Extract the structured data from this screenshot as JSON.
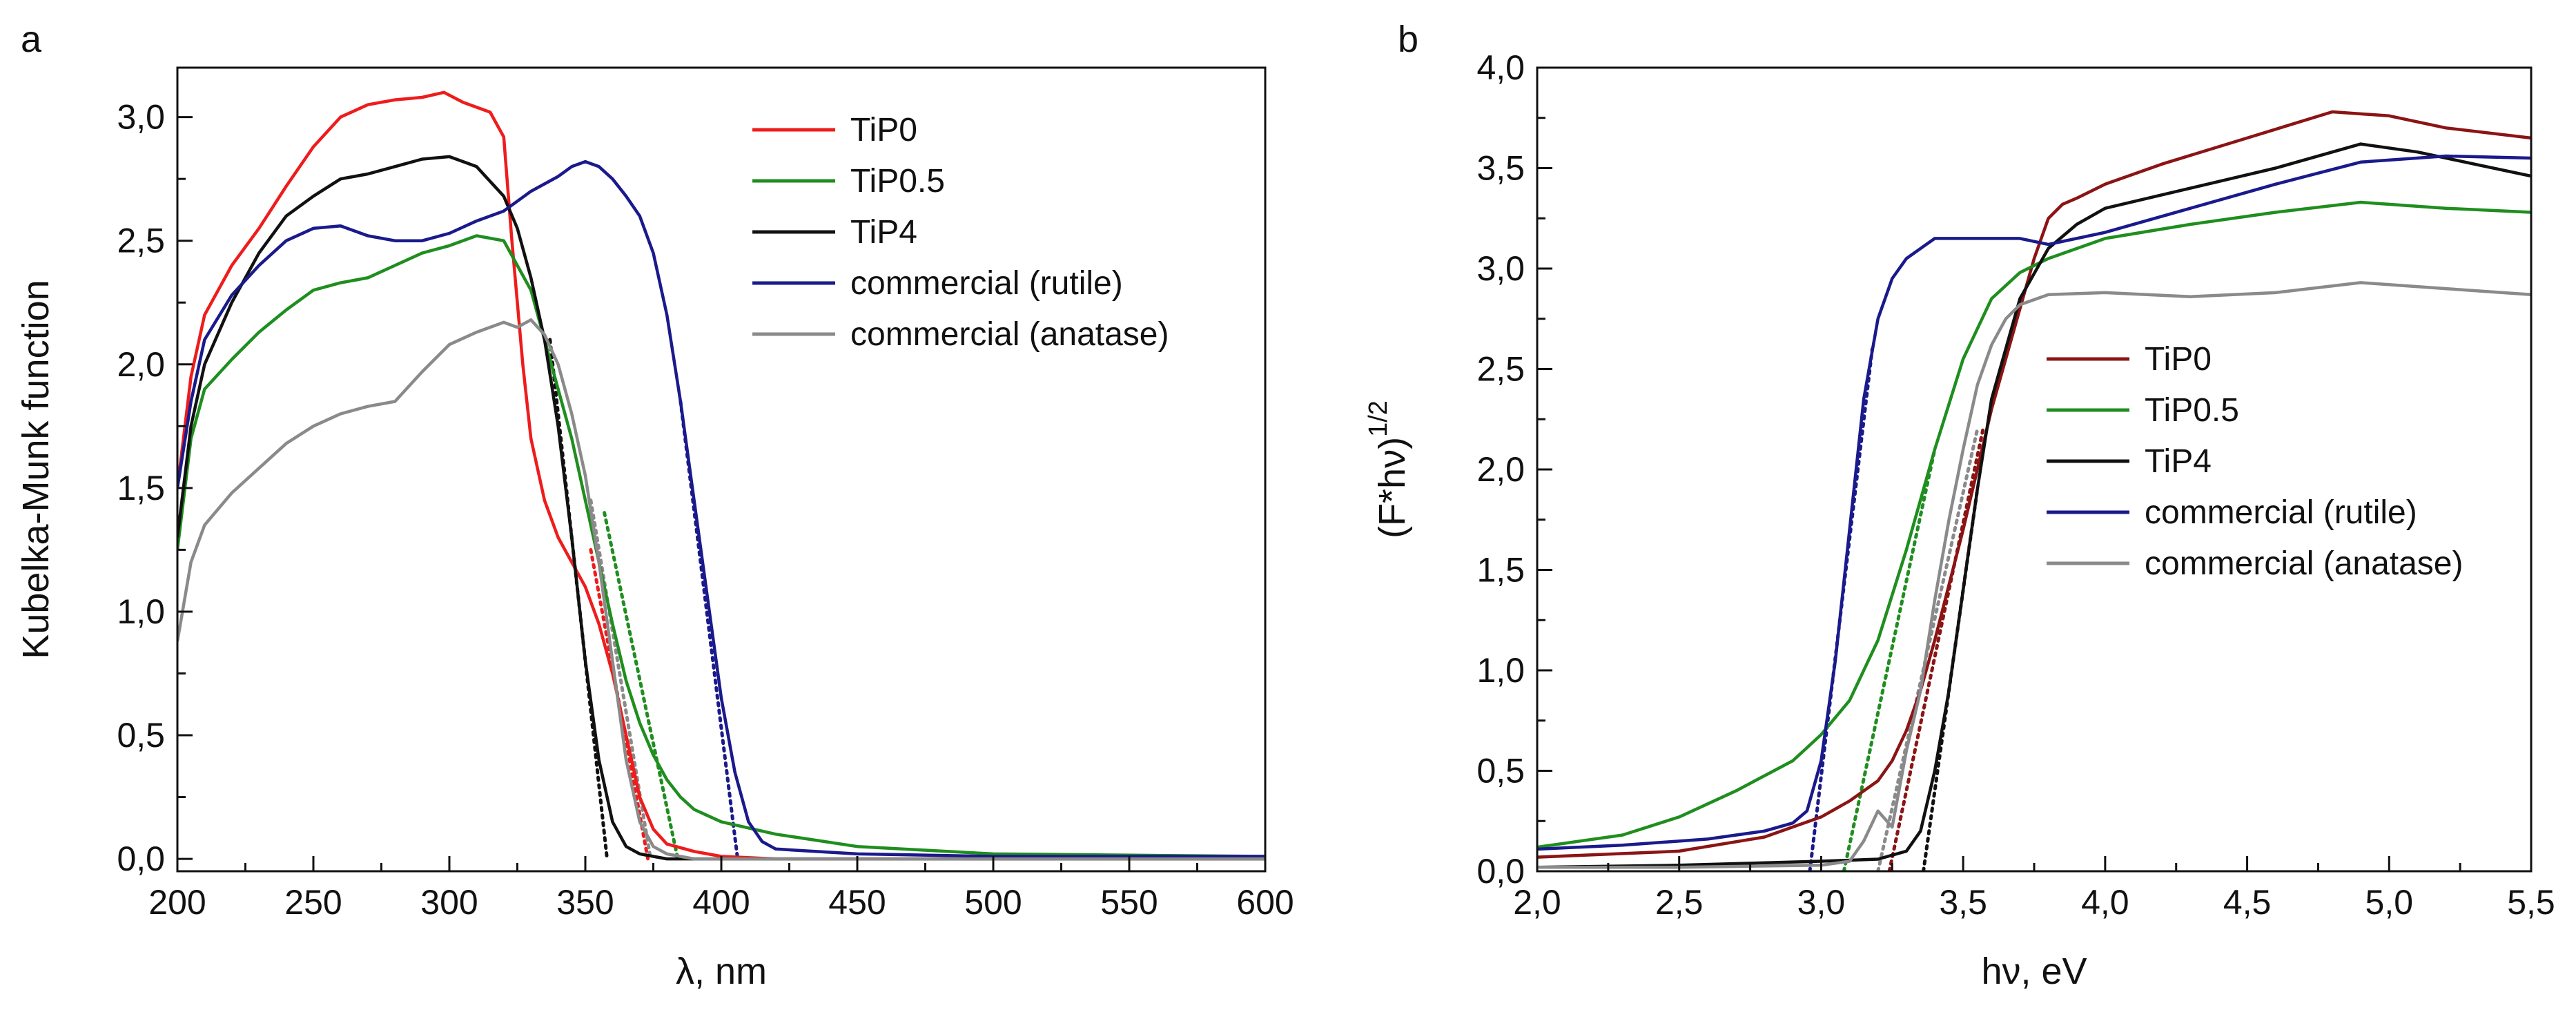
{
  "chart_data": [
    {
      "type": "line",
      "panel": "a",
      "xlabel": "λ, nm",
      "ylabel": "Kubelka-Munk function",
      "xlim": [
        200,
        600
      ],
      "ylim": [
        -0.05,
        3.2
      ],
      "xticks": [
        200,
        250,
        300,
        350,
        400,
        450,
        500,
        550,
        600
      ],
      "xtick_labels": [
        "200",
        "250",
        "300",
        "350",
        "400",
        "450",
        "500",
        "550",
        "600"
      ],
      "yticks": [
        0,
        0.5,
        1,
        1.5,
        2,
        2.5,
        3
      ],
      "ytick_labels": [
        "0,0",
        "0,5",
        "1,0",
        "1,5",
        "2,0",
        "2,5",
        "3,0"
      ],
      "legend": "top-right",
      "series": [
        {
          "name": "TiP0",
          "color": "#ee1c1c",
          "x": [
            200,
            205,
            210,
            220,
            230,
            240,
            250,
            260,
            270,
            280,
            290,
            298,
            305,
            315,
            320,
            323,
            327,
            330,
            335,
            340,
            345,
            350,
            355,
            360,
            365,
            370,
            375,
            380,
            390,
            400,
            420,
            450,
            500,
            600
          ],
          "y": [
            1.5,
            1.95,
            2.2,
            2.4,
            2.55,
            2.72,
            2.88,
            3.0,
            3.05,
            3.07,
            3.08,
            3.1,
            3.06,
            3.02,
            2.92,
            2.5,
            2.0,
            1.7,
            1.45,
            1.3,
            1.2,
            1.1,
            0.95,
            0.75,
            0.5,
            0.25,
            0.12,
            0.06,
            0.03,
            0.01,
            0.0,
            0.0,
            0.0,
            0.0
          ]
        },
        {
          "name": "TiP0.5",
          "color": "#1f8e1f",
          "x": [
            200,
            205,
            210,
            220,
            230,
            240,
            250,
            260,
            270,
            280,
            290,
            300,
            310,
            320,
            325,
            330,
            335,
            340,
            345,
            350,
            355,
            360,
            365,
            370,
            375,
            380,
            385,
            390,
            400,
            420,
            450,
            500,
            600
          ],
          "y": [
            1.25,
            1.7,
            1.9,
            2.02,
            2.13,
            2.22,
            2.3,
            2.33,
            2.35,
            2.4,
            2.45,
            2.48,
            2.52,
            2.5,
            2.4,
            2.3,
            2.1,
            1.9,
            1.7,
            1.45,
            1.2,
            0.95,
            0.72,
            0.55,
            0.42,
            0.32,
            0.25,
            0.2,
            0.15,
            0.1,
            0.05,
            0.02,
            0.01
          ]
        },
        {
          "name": "TiP4",
          "color": "#111111",
          "x": [
            200,
            205,
            210,
            220,
            230,
            240,
            250,
            260,
            270,
            280,
            290,
            300,
            310,
            320,
            325,
            330,
            335,
            340,
            345,
            350,
            355,
            360,
            365,
            370,
            380,
            400,
            600
          ],
          "y": [
            1.3,
            1.75,
            2.0,
            2.25,
            2.45,
            2.6,
            2.68,
            2.75,
            2.77,
            2.8,
            2.83,
            2.84,
            2.8,
            2.68,
            2.55,
            2.35,
            2.1,
            1.75,
            1.3,
            0.8,
            0.4,
            0.15,
            0.05,
            0.02,
            0.0,
            0.0,
            0.0
          ]
        },
        {
          "name": "commercial (rutile)",
          "color": "#1a1a8c",
          "x": [
            200,
            205,
            210,
            220,
            230,
            240,
            250,
            260,
            270,
            280,
            290,
            300,
            310,
            320,
            330,
            340,
            345,
            350,
            355,
            360,
            365,
            370,
            375,
            380,
            385,
            390,
            395,
            400,
            405,
            410,
            415,
            420,
            450,
            500,
            600
          ],
          "y": [
            1.5,
            1.85,
            2.1,
            2.28,
            2.4,
            2.5,
            2.55,
            2.56,
            2.52,
            2.5,
            2.5,
            2.53,
            2.58,
            2.62,
            2.7,
            2.76,
            2.8,
            2.82,
            2.8,
            2.75,
            2.68,
            2.6,
            2.45,
            2.2,
            1.85,
            1.45,
            1.05,
            0.65,
            0.35,
            0.15,
            0.07,
            0.04,
            0.02,
            0.01,
            0.01
          ]
        },
        {
          "name": "commercial (anatase)",
          "color": "#8a8a8a",
          "x": [
            200,
            205,
            210,
            220,
            230,
            240,
            250,
            260,
            270,
            280,
            290,
            300,
            310,
            320,
            325,
            330,
            335,
            340,
            345,
            350,
            355,
            360,
            365,
            370,
            375,
            380,
            390,
            400,
            600
          ],
          "y": [
            0.88,
            1.2,
            1.35,
            1.48,
            1.58,
            1.68,
            1.75,
            1.8,
            1.83,
            1.85,
            1.97,
            2.08,
            2.13,
            2.17,
            2.15,
            2.18,
            2.12,
            2.0,
            1.8,
            1.55,
            1.2,
            0.8,
            0.4,
            0.15,
            0.05,
            0.02,
            0.0,
            0.0,
            0.0
          ]
        }
      ],
      "tangents": [
        {
          "color": "#ee1c1c",
          "x": [
            352,
            373
          ],
          "y": [
            1.25,
            0.0
          ]
        },
        {
          "color": "#1f8e1f",
          "x": [
            357,
            384
          ],
          "y": [
            1.4,
            0.0
          ]
        },
        {
          "color": "#111111",
          "x": [
            337,
            358
          ],
          "y": [
            2.1,
            0.0
          ]
        },
        {
          "color": "#1a1a8c",
          "x": [
            385,
            406
          ],
          "y": [
            1.85,
            0.0
          ]
        },
        {
          "color": "#8a8a8a",
          "x": [
            352,
            374
          ],
          "y": [
            1.45,
            0.0
          ]
        }
      ]
    },
    {
      "type": "line",
      "panel": "b",
      "xlabel": "hν, eV",
      "ylabel": "(F*hν)^1/2",
      "ylabel_main": "(F*hν)",
      "ylabel_sup": "1/2",
      "xlim": [
        2.0,
        5.5
      ],
      "ylim": [
        0.0,
        4.0
      ],
      "xticks": [
        2.0,
        2.5,
        3.0,
        3.5,
        4.0,
        4.5,
        5.0,
        5.5
      ],
      "xtick_labels": [
        "2,0",
        "2,5",
        "3,0",
        "3,5",
        "4,0",
        "4,5",
        "5,0",
        "5,5"
      ],
      "yticks": [
        0,
        0.5,
        1,
        1.5,
        2,
        2.5,
        3,
        3.5,
        4
      ],
      "ytick_labels": [
        "0,0",
        "0,5",
        "1,0",
        "1,5",
        "2,0",
        "2,5",
        "3,0",
        "3,5",
        "4,0"
      ],
      "legend": "center-right",
      "series": [
        {
          "name": "TiP0",
          "color": "#8b1414",
          "x": [
            2.0,
            2.5,
            2.8,
            3.0,
            3.1,
            3.2,
            3.25,
            3.3,
            3.35,
            3.4,
            3.5,
            3.6,
            3.7,
            3.75,
            3.8,
            3.85,
            3.9,
            4.0,
            4.2,
            4.5,
            4.8,
            5.0,
            5.2,
            5.5
          ],
          "y": [
            0.07,
            0.1,
            0.17,
            0.27,
            0.35,
            0.45,
            0.55,
            0.7,
            0.9,
            1.15,
            1.7,
            2.3,
            2.8,
            3.05,
            3.25,
            3.32,
            3.35,
            3.42,
            3.52,
            3.65,
            3.78,
            3.76,
            3.7,
            3.65
          ]
        },
        {
          "name": "TiP0.5",
          "color": "#1f8e1f",
          "x": [
            2.0,
            2.3,
            2.5,
            2.7,
            2.9,
            3.0,
            3.1,
            3.2,
            3.3,
            3.4,
            3.5,
            3.6,
            3.7,
            3.8,
            4.0,
            4.3,
            4.6,
            4.9,
            5.2,
            5.5
          ],
          "y": [
            0.12,
            0.18,
            0.27,
            0.4,
            0.55,
            0.68,
            0.85,
            1.15,
            1.6,
            2.1,
            2.55,
            2.85,
            2.98,
            3.05,
            3.15,
            3.22,
            3.28,
            3.33,
            3.3,
            3.28
          ]
        },
        {
          "name": "TiP4",
          "color": "#111111",
          "x": [
            2.0,
            2.5,
            3.0,
            3.2,
            3.3,
            3.35,
            3.4,
            3.45,
            3.5,
            3.55,
            3.6,
            3.7,
            3.8,
            3.9,
            4.0,
            4.3,
            4.6,
            4.9,
            5.1,
            5.3,
            5.5
          ],
          "y": [
            0.02,
            0.03,
            0.05,
            0.06,
            0.1,
            0.2,
            0.5,
            0.9,
            1.4,
            1.9,
            2.35,
            2.85,
            3.1,
            3.22,
            3.3,
            3.4,
            3.5,
            3.62,
            3.58,
            3.52,
            3.46
          ]
        },
        {
          "name": "commercial (rutile)",
          "color": "#1a1a8c",
          "x": [
            2.0,
            2.3,
            2.6,
            2.8,
            2.9,
            2.95,
            3.0,
            3.05,
            3.1,
            3.15,
            3.2,
            3.25,
            3.3,
            3.35,
            3.4,
            3.5,
            3.7,
            3.8,
            4.0,
            4.3,
            4.6,
            4.9,
            5.2,
            5.5
          ],
          "y": [
            0.11,
            0.13,
            0.16,
            0.2,
            0.24,
            0.3,
            0.55,
            1.05,
            1.7,
            2.35,
            2.75,
            2.95,
            3.05,
            3.1,
            3.15,
            3.15,
            3.15,
            3.12,
            3.18,
            3.3,
            3.42,
            3.53,
            3.56,
            3.55
          ]
        },
        {
          "name": "commercial (anatase)",
          "color": "#8a8a8a",
          "x": [
            2.0,
            2.5,
            3.0,
            3.1,
            3.15,
            3.2,
            3.25,
            3.3,
            3.35,
            3.4,
            3.45,
            3.5,
            3.55,
            3.6,
            3.65,
            3.7,
            3.8,
            4.0,
            4.3,
            4.6,
            4.9,
            5.2,
            5.5
          ],
          "y": [
            0.02,
            0.02,
            0.03,
            0.05,
            0.15,
            0.3,
            0.22,
            0.6,
            0.9,
            1.35,
            1.75,
            2.1,
            2.42,
            2.62,
            2.75,
            2.82,
            2.87,
            2.88,
            2.86,
            2.88,
            2.93,
            2.9,
            2.87
          ]
        }
      ],
      "tangents": [
        {
          "color": "#8b1414",
          "x": [
            3.24,
            3.57
          ],
          "y": [
            0.0,
            2.2
          ]
        },
        {
          "color": "#1f8e1f",
          "x": [
            3.08,
            3.4
          ],
          "y": [
            0.0,
            2.1
          ]
        },
        {
          "color": "#111111",
          "x": [
            3.36,
            3.55
          ],
          "y": [
            0.0,
            1.9
          ]
        },
        {
          "color": "#1a1a8c",
          "x": [
            2.96,
            3.18
          ],
          "y": [
            0.0,
            2.6
          ]
        },
        {
          "color": "#8a8a8a",
          "x": [
            3.2,
            3.55
          ],
          "y": [
            0.0,
            2.2
          ]
        }
      ]
    }
  ]
}
